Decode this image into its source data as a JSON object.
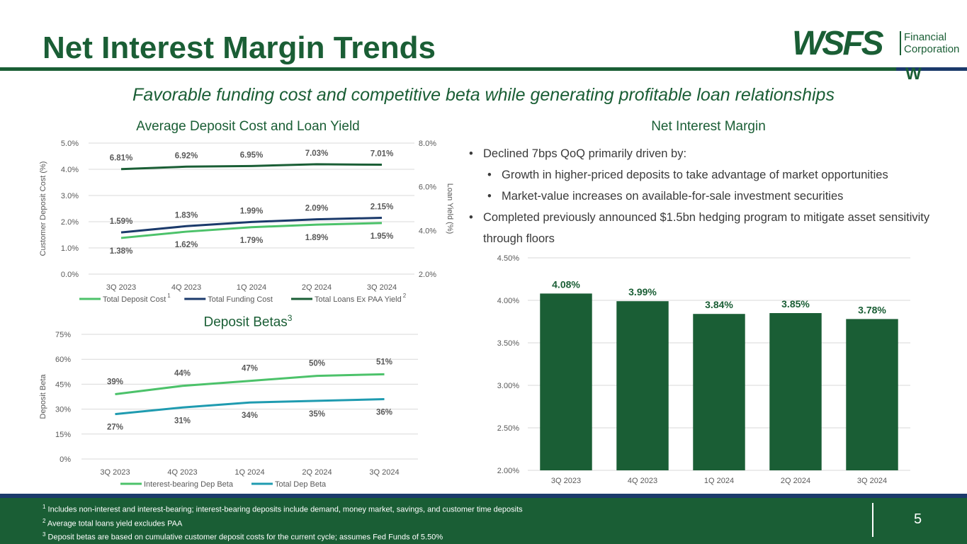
{
  "header": {
    "title": "Net Interest Margin Trends",
    "subtitle": "Favorable funding cost and competitive beta while generating profitable loan relationships"
  },
  "logo": {
    "main": "WSFS",
    "sub_line1": "Financial",
    "sub_line2": "Corporation",
    "mark": "W"
  },
  "colors": {
    "brand_green": "#1a5e35",
    "navy": "#1b3a6b",
    "light_green": "#4cc26a",
    "teal": "#1f9bb0"
  },
  "nim_section": {
    "title": "Net Interest Margin",
    "bullets": [
      {
        "level": 1,
        "text": "Declined 7bps QoQ primarily driven by:"
      },
      {
        "level": 2,
        "text": "Growth in higher-priced deposits to take advantage of market opportunities"
      },
      {
        "level": 2,
        "text": "Market-value increases on available-for-sale investment securities"
      },
      {
        "level": 1,
        "text": "Completed previously announced $1.5bn hedging program to mitigate asset sensitivity through floors"
      }
    ]
  },
  "chart_data": [
    {
      "id": "deposit-cost-loan-yield",
      "type": "line",
      "title": "Average Deposit Cost and Loan Yield",
      "categories": [
        "3Q 2023",
        "4Q 2023",
        "1Q 2024",
        "2Q 2024",
        "3Q 2024"
      ],
      "ylabel": "Customer Deposit Cost (%)",
      "ylim": [
        0,
        5
      ],
      "yticks": [
        "0.0%",
        "1.0%",
        "2.0%",
        "3.0%",
        "4.0%",
        "5.0%"
      ],
      "y2label": "Loan Yield (%)",
      "y2lim": [
        2,
        8
      ],
      "y2ticks": [
        "2.0%",
        "4.0%",
        "6.0%",
        "8.0%"
      ],
      "series": [
        {
          "name": "Total Deposit Cost",
          "sup": "1",
          "axis": "left",
          "color": "#4cc26a",
          "values": [
            1.38,
            1.62,
            1.79,
            1.89,
            1.95
          ],
          "labels": [
            "1.38%",
            "1.62%",
            "1.79%",
            "1.89%",
            "1.95%"
          ],
          "label_pos": "below"
        },
        {
          "name": "Total Funding Cost",
          "sup": "",
          "axis": "left",
          "color": "#1b3a6b",
          "values": [
            1.59,
            1.83,
            1.99,
            2.09,
            2.15
          ],
          "labels": [
            "1.59%",
            "1.83%",
            "1.99%",
            "2.09%",
            "2.15%"
          ],
          "label_pos": "above"
        },
        {
          "name": "Total Loans Ex PAA Yield",
          "sup": "2",
          "axis": "right",
          "color": "#1a5e35",
          "values": [
            6.81,
            6.92,
            6.95,
            7.03,
            7.01
          ],
          "labels": [
            "6.81%",
            "6.92%",
            "6.95%",
            "7.03%",
            "7.01%"
          ],
          "label_pos": "above"
        }
      ]
    },
    {
      "id": "deposit-betas",
      "type": "line",
      "title": "Deposit Betas",
      "title_sup": "3",
      "categories": [
        "3Q 2023",
        "4Q 2023",
        "1Q 2024",
        "2Q 2024",
        "3Q 2024"
      ],
      "ylabel": "Deposit Beta",
      "ylim": [
        0,
        75
      ],
      "yticks": [
        "0%",
        "15%",
        "30%",
        "45%",
        "60%",
        "75%"
      ],
      "series": [
        {
          "name": "Interest-bearing Dep Beta",
          "color": "#4cc26a",
          "values": [
            39,
            44,
            47,
            50,
            51
          ],
          "labels": [
            "39%",
            "44%",
            "47%",
            "50%",
            "51%"
          ],
          "label_pos": "above"
        },
        {
          "name": "Total Dep Beta",
          "color": "#1f9bb0",
          "values": [
            27,
            31,
            34,
            35,
            36
          ],
          "labels": [
            "27%",
            "31%",
            "34%",
            "35%",
            "36%"
          ],
          "label_pos": "below"
        }
      ]
    },
    {
      "id": "net-interest-margin",
      "type": "bar",
      "title": "Net Interest Margin",
      "categories": [
        "3Q 2023",
        "4Q 2023",
        "1Q 2024",
        "2Q 2024",
        "3Q 2024"
      ],
      "values": [
        4.08,
        3.99,
        3.84,
        3.85,
        3.78
      ],
      "labels": [
        "4.08%",
        "3.99%",
        "3.84%",
        "3.85%",
        "3.78%"
      ],
      "color": "#1a5e35",
      "ylim": [
        2.0,
        4.5
      ],
      "yticks": [
        "2.00%",
        "2.50%",
        "3.00%",
        "3.50%",
        "4.00%",
        "4.50%"
      ]
    }
  ],
  "footnotes": [
    {
      "num": "1",
      "text": "Includes non-interest and interest-bearing; interest-bearing deposits include demand, money market, savings, and customer time deposits"
    },
    {
      "num": "2",
      "text": "Average total loans yield excludes PAA"
    },
    {
      "num": "3",
      "text": "Deposit betas are based on cumulative customer deposit costs for the current cycle; assumes Fed Funds of 5.50%"
    }
  ],
  "page_number": "5"
}
